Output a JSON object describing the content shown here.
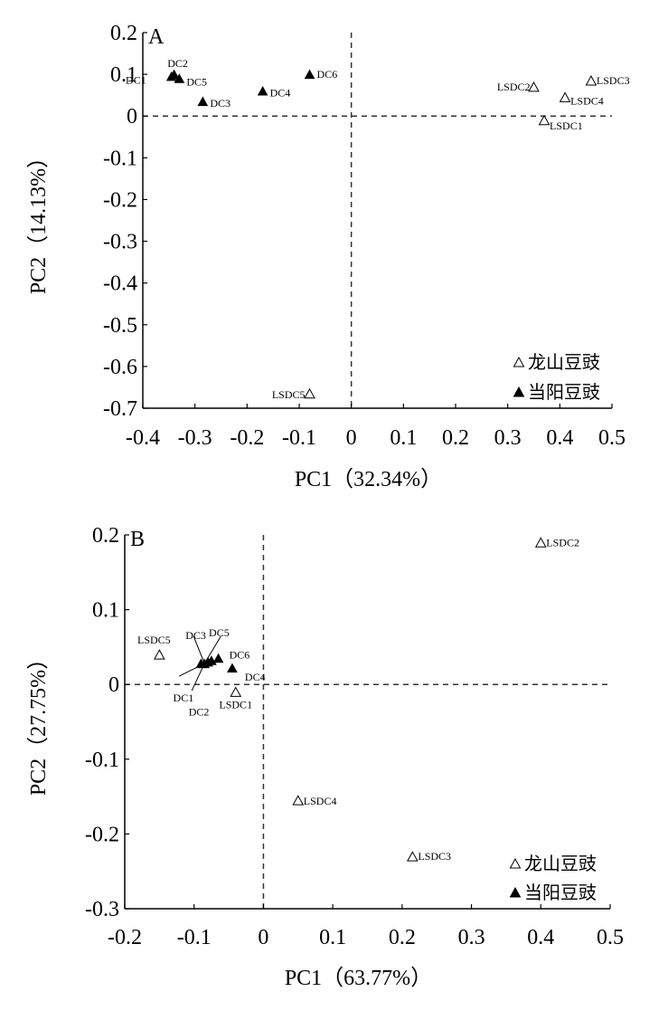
{
  "chart_data": [
    {
      "type": "scatter",
      "panel_label": "A",
      "xlabel": "PC1（32.34%）",
      "ylabel": "PC2（14.13%）",
      "xlim": [
        -0.4,
        0.5
      ],
      "ylim": [
        -0.7,
        0.2
      ],
      "xticks": [
        "-0.4",
        "-0.3",
        "-0.2",
        "-0.1",
        "0",
        "0.1",
        "0.2",
        "0.3",
        "0.4",
        "0.5"
      ],
      "yticks": [
        "0.2",
        "0.1",
        "0",
        "-0.1",
        "-0.2",
        "-0.3",
        "-0.4",
        "-0.5",
        "-0.6",
        "-0.7"
      ],
      "reference_lines": {
        "x": 0,
        "y": 0,
        "style": "dashed"
      },
      "legend_position": "bottom-right",
      "series": [
        {
          "name": "龙山豆豉",
          "marker": "open-triangle",
          "points": [
            {
              "label": "LSDC1",
              "x": 0.37,
              "y": -0.01
            },
            {
              "label": "LSDC2",
              "x": 0.35,
              "y": 0.07
            },
            {
              "label": "LSDC3",
              "x": 0.46,
              "y": 0.085
            },
            {
              "label": "LSDC4",
              "x": 0.41,
              "y": 0.045
            },
            {
              "label": "LSDC5",
              "x": -0.08,
              "y": -0.665
            }
          ]
        },
        {
          "name": "当阳豆豉",
          "marker": "filled-triangle",
          "points": [
            {
              "label": "DC1",
              "x": -0.345,
              "y": 0.095
            },
            {
              "label": "DC2",
              "x": -0.34,
              "y": 0.1
            },
            {
              "label": "DC3",
              "x": -0.285,
              "y": 0.035
            },
            {
              "label": "DC4",
              "x": -0.17,
              "y": 0.06
            },
            {
              "label": "DC5",
              "x": -0.33,
              "y": 0.09
            },
            {
              "label": "DC6",
              "x": -0.08,
              "y": 0.1
            }
          ]
        }
      ]
    },
    {
      "type": "scatter",
      "panel_label": "B",
      "xlabel": "PC1（63.77%）",
      "ylabel": "PC2（27.75%）",
      "xlim": [
        -0.2,
        0.5
      ],
      "ylim": [
        -0.3,
        0.2
      ],
      "xticks": [
        "-0.2",
        "-0.1",
        "0",
        "0.1",
        "0.2",
        "0.3",
        "0.4",
        "0.5"
      ],
      "yticks": [
        "0.2",
        "0.1",
        "0",
        "-0.1",
        "-0.2",
        "-0.3"
      ],
      "reference_lines": {
        "x": 0,
        "y": 0,
        "style": "dashed"
      },
      "legend_position": "bottom-right",
      "series": [
        {
          "name": "龙山豆豉",
          "marker": "open-triangle",
          "points": [
            {
              "label": "LSDC1",
              "x": -0.04,
              "y": -0.01
            },
            {
              "label": "LSDC2",
              "x": 0.4,
              "y": 0.19
            },
            {
              "label": "LSDC3",
              "x": 0.215,
              "y": -0.23
            },
            {
              "label": "LSDC4",
              "x": 0.05,
              "y": -0.155
            },
            {
              "label": "LSDC5",
              "x": -0.15,
              "y": 0.04
            }
          ]
        },
        {
          "name": "当阳豆豉",
          "marker": "filled-triangle",
          "points": [
            {
              "label": "DC1",
              "x": -0.085,
              "y": 0.028
            },
            {
              "label": "DC2",
              "x": -0.08,
              "y": 0.03
            },
            {
              "label": "DC3",
              "x": -0.075,
              "y": 0.032
            },
            {
              "label": "DC4",
              "x": -0.045,
              "y": 0.022
            },
            {
              "label": "DC5",
              "x": -0.09,
              "y": 0.028
            },
            {
              "label": "DC6",
              "x": -0.065,
              "y": 0.035
            }
          ]
        }
      ]
    }
  ]
}
